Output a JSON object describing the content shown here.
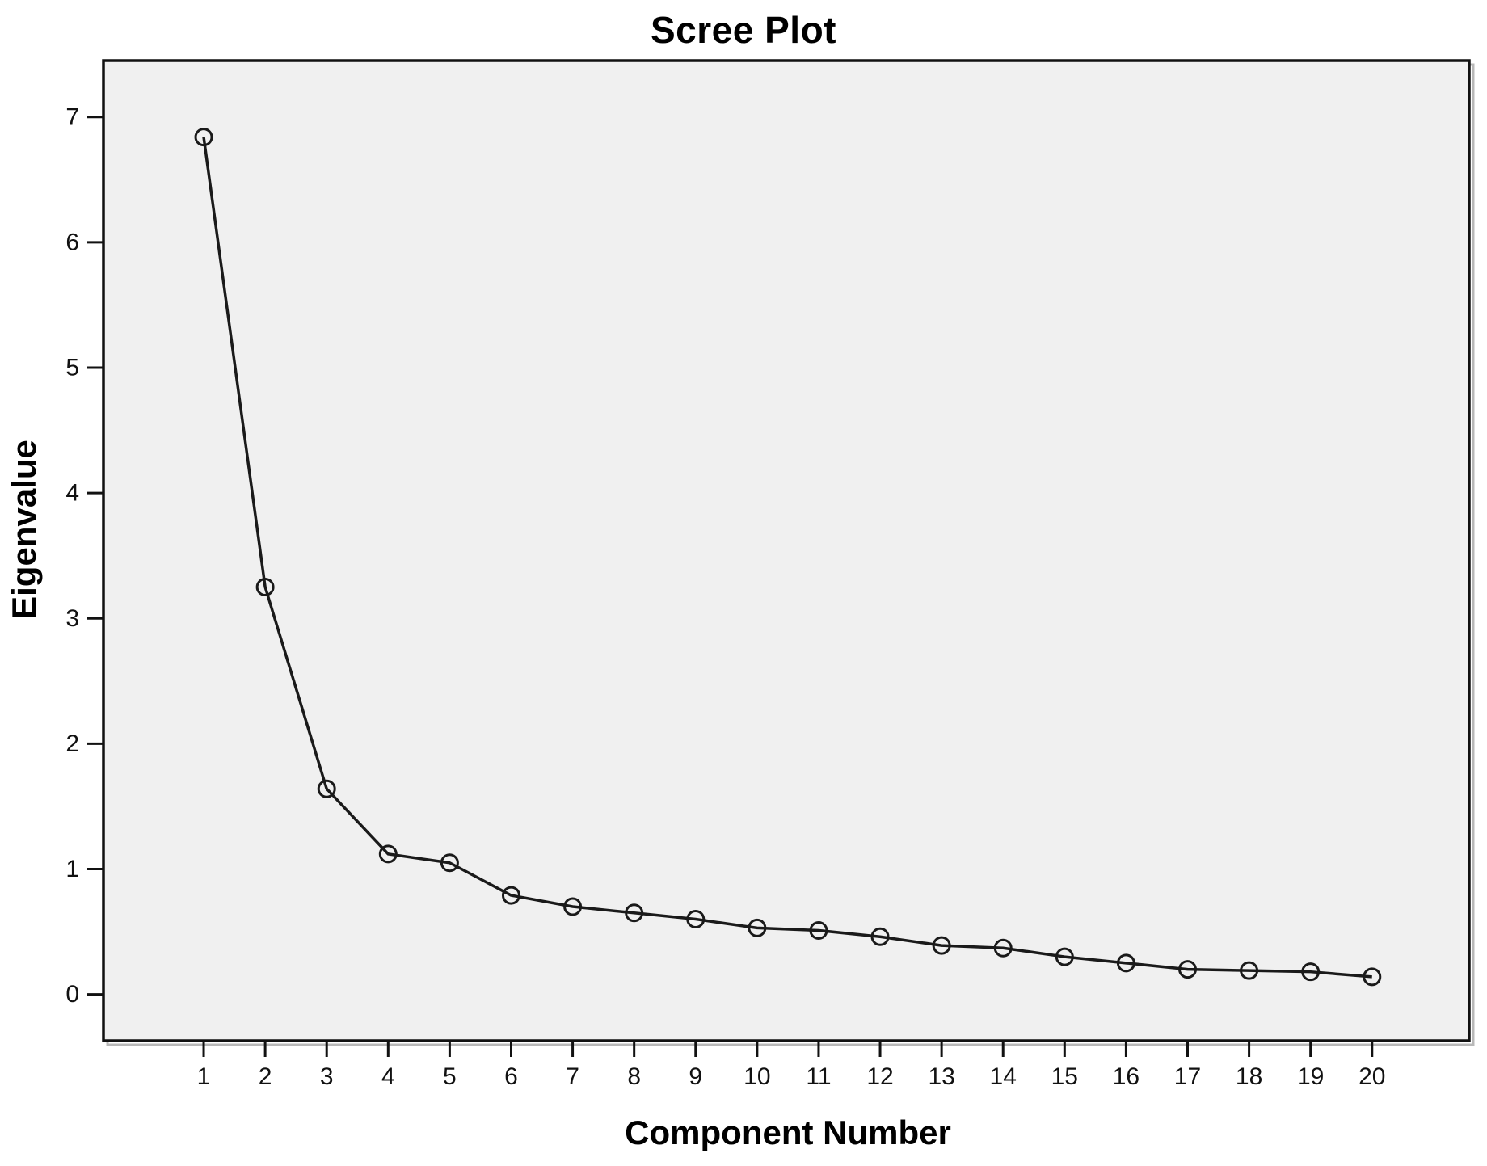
{
  "chart_data": {
    "type": "line",
    "title": "Scree Plot",
    "xlabel": "Component Number",
    "ylabel": "Eigenvalue",
    "series": [
      {
        "name": "Eigenvalue",
        "x": [
          1,
          2,
          3,
          4,
          5,
          6,
          7,
          8,
          9,
          10,
          11,
          12,
          13,
          14,
          15,
          16,
          17,
          18,
          19,
          20
        ],
        "values": [
          6.84,
          3.25,
          1.64,
          1.12,
          1.05,
          0.79,
          0.7,
          0.65,
          0.6,
          0.53,
          0.51,
          0.46,
          0.39,
          0.37,
          0.3,
          0.25,
          0.2,
          0.19,
          0.18,
          0.14
        ]
      }
    ],
    "x_ticks": [
      "1",
      "2",
      "3",
      "4",
      "5",
      "6",
      "7",
      "8",
      "9",
      "10",
      "11",
      "12",
      "13",
      "14",
      "15",
      "16",
      "17",
      "18",
      "19",
      "20"
    ],
    "y_ticks": [
      "0",
      "1",
      "2",
      "3",
      "4",
      "5",
      "6",
      "7"
    ],
    "xlim": [
      -0.63,
      21.58
    ],
    "ylim": [
      -0.37,
      7.45
    ],
    "grid": false,
    "legend": false,
    "marker": "open-circle",
    "colors": {
      "line": "#1a1a1a",
      "marker_stroke": "#1a1a1a",
      "plot_background": "#f0f0f0",
      "frame": "#111111",
      "frame_shadow": "#b8b8b8",
      "tick_text": "#111111",
      "page_background": "#ffffff"
    }
  }
}
